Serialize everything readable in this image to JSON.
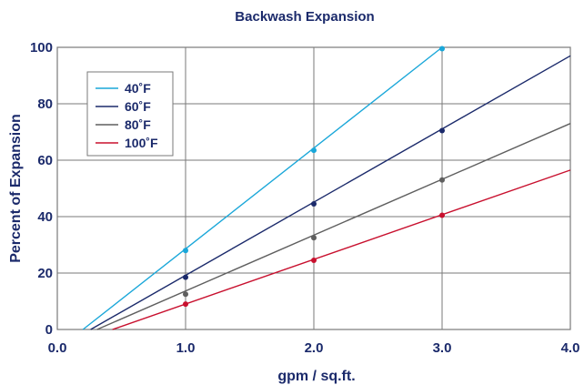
{
  "chart_data": {
    "type": "line",
    "title": "Backwash Expansion",
    "xlabel": "gpm / sq.ft.",
    "ylabel": "Percent of Expansion",
    "xlim": [
      0.0,
      4.0
    ],
    "ylim": [
      0,
      100
    ],
    "x_ticks": [
      0.0,
      1.0,
      2.0,
      3.0,
      4.0
    ],
    "x_tick_labels": [
      "0.0",
      "1.0",
      "2.0",
      "3.0",
      "4.0"
    ],
    "y_ticks": [
      0,
      20,
      40,
      60,
      80,
      100
    ],
    "y_tick_labels": [
      "0",
      "20",
      "40",
      "60",
      "80",
      "100"
    ],
    "grid": true,
    "legend_position": "top-left",
    "series": [
      {
        "name": "40˚F",
        "color": "#1aa7d9",
        "line": {
          "x": [
            0.2,
            3.0
          ],
          "y": [
            0,
            100
          ]
        },
        "points": {
          "x": [
            1.0,
            2.0,
            3.0
          ],
          "y": [
            28,
            63.5,
            99.5
          ]
        }
      },
      {
        "name": "60˚F",
        "color": "#1b2a6b",
        "line": {
          "x": [
            0.26,
            4.0
          ],
          "y": [
            0,
            97
          ]
        },
        "points": {
          "x": [
            1.0,
            2.0,
            3.0
          ],
          "y": [
            18.5,
            44.5,
            70.5
          ]
        }
      },
      {
        "name": "80˚F",
        "color": "#5f5f5f",
        "line": {
          "x": [
            0.31,
            4.0
          ],
          "y": [
            0,
            73
          ]
        },
        "points": {
          "x": [
            1.0,
            2.0,
            3.0
          ],
          "y": [
            12.5,
            32.5,
            53
          ]
        }
      },
      {
        "name": "100˚F",
        "color": "#c8102e",
        "line": {
          "x": [
            0.43,
            4.0
          ],
          "y": [
            0,
            56.5
          ]
        },
        "points": {
          "x": [
            1.0,
            2.0,
            3.0
          ],
          "y": [
            9,
            24.5,
            40.5
          ]
        }
      }
    ],
    "colors": {
      "text": "#1b2a6b",
      "grid": "#7a7a7a",
      "frame": "#7a7a7a"
    }
  }
}
